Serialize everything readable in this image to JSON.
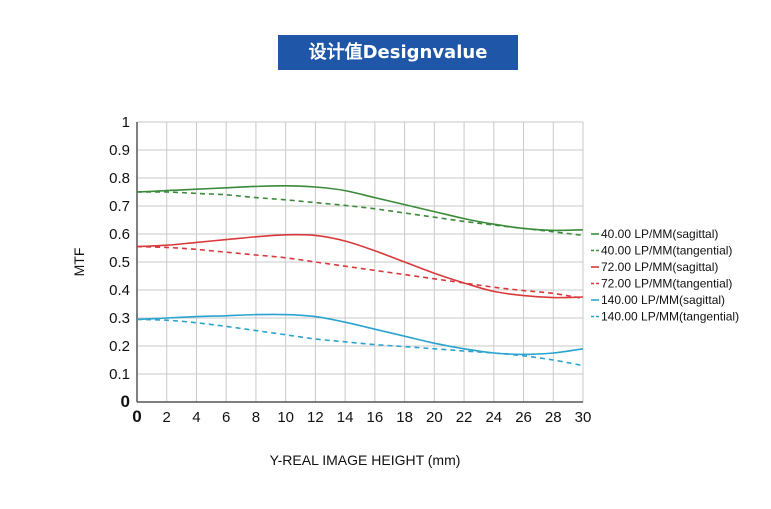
{
  "chart_data": {
    "type": "line",
    "title": "设计值Designvalue",
    "xlabel": "Y-REAL IMAGE HEIGHT (mm)",
    "ylabel": "MTF",
    "xlim": [
      0,
      30
    ],
    "ylim": [
      0,
      1
    ],
    "xticks": [
      0,
      2,
      4,
      6,
      8,
      10,
      12,
      14,
      16,
      18,
      20,
      22,
      24,
      26,
      28,
      30
    ],
    "yticks": [
      0,
      0.1,
      0.2,
      0.3,
      0.4,
      0.5,
      0.6,
      0.7,
      0.8,
      0.9,
      1
    ],
    "ytick_labels": [
      "0",
      "0.1",
      "0.2",
      "0.3",
      "0.4",
      "0.5",
      "0.6",
      "0.7",
      "0.8",
      "0.9",
      "1"
    ],
    "grid": true,
    "legend_position": "right",
    "x": [
      0,
      2,
      4,
      6,
      8,
      10,
      12,
      14,
      16,
      18,
      20,
      22,
      24,
      26,
      28,
      30
    ],
    "series": [
      {
        "name": "40.00 LP/MM(sagittal)",
        "color": "#3a8a3a",
        "dash": false,
        "values": [
          0.75,
          0.755,
          0.76,
          0.765,
          0.77,
          0.772,
          0.768,
          0.755,
          0.73,
          0.705,
          0.68,
          0.655,
          0.635,
          0.62,
          0.613,
          0.615
        ]
      },
      {
        "name": "40.00 LP/MM(tangential)",
        "color": "#3a8a3a",
        "dash": true,
        "values": [
          0.75,
          0.75,
          0.745,
          0.74,
          0.73,
          0.722,
          0.712,
          0.702,
          0.69,
          0.675,
          0.66,
          0.645,
          0.632,
          0.62,
          0.608,
          0.595
        ]
      },
      {
        "name": "72.00 LP/MM(sagittal)",
        "color": "#d9393b",
        "dash": false,
        "values": [
          0.555,
          0.56,
          0.57,
          0.58,
          0.59,
          0.597,
          0.595,
          0.575,
          0.54,
          0.5,
          0.46,
          0.425,
          0.395,
          0.38,
          0.373,
          0.375
        ]
      },
      {
        "name": "72.00 LP/MM(tangential)",
        "color": "#d9393b",
        "dash": true,
        "values": [
          0.555,
          0.552,
          0.545,
          0.535,
          0.525,
          0.515,
          0.5,
          0.485,
          0.47,
          0.455,
          0.44,
          0.425,
          0.41,
          0.398,
          0.388,
          0.37
        ]
      },
      {
        "name": "140.00 LP/MM(sagittal)",
        "color": "#2aa3cf",
        "dash": false,
        "values": [
          0.295,
          0.3,
          0.305,
          0.308,
          0.312,
          0.312,
          0.305,
          0.285,
          0.26,
          0.235,
          0.21,
          0.19,
          0.175,
          0.17,
          0.175,
          0.19
        ]
      },
      {
        "name": "140.00 LP/MM(tangential)",
        "color": "#2aa3cf",
        "dash": true,
        "values": [
          0.295,
          0.292,
          0.283,
          0.27,
          0.255,
          0.24,
          0.225,
          0.215,
          0.205,
          0.198,
          0.19,
          0.182,
          0.175,
          0.165,
          0.15,
          0.13
        ]
      }
    ]
  }
}
